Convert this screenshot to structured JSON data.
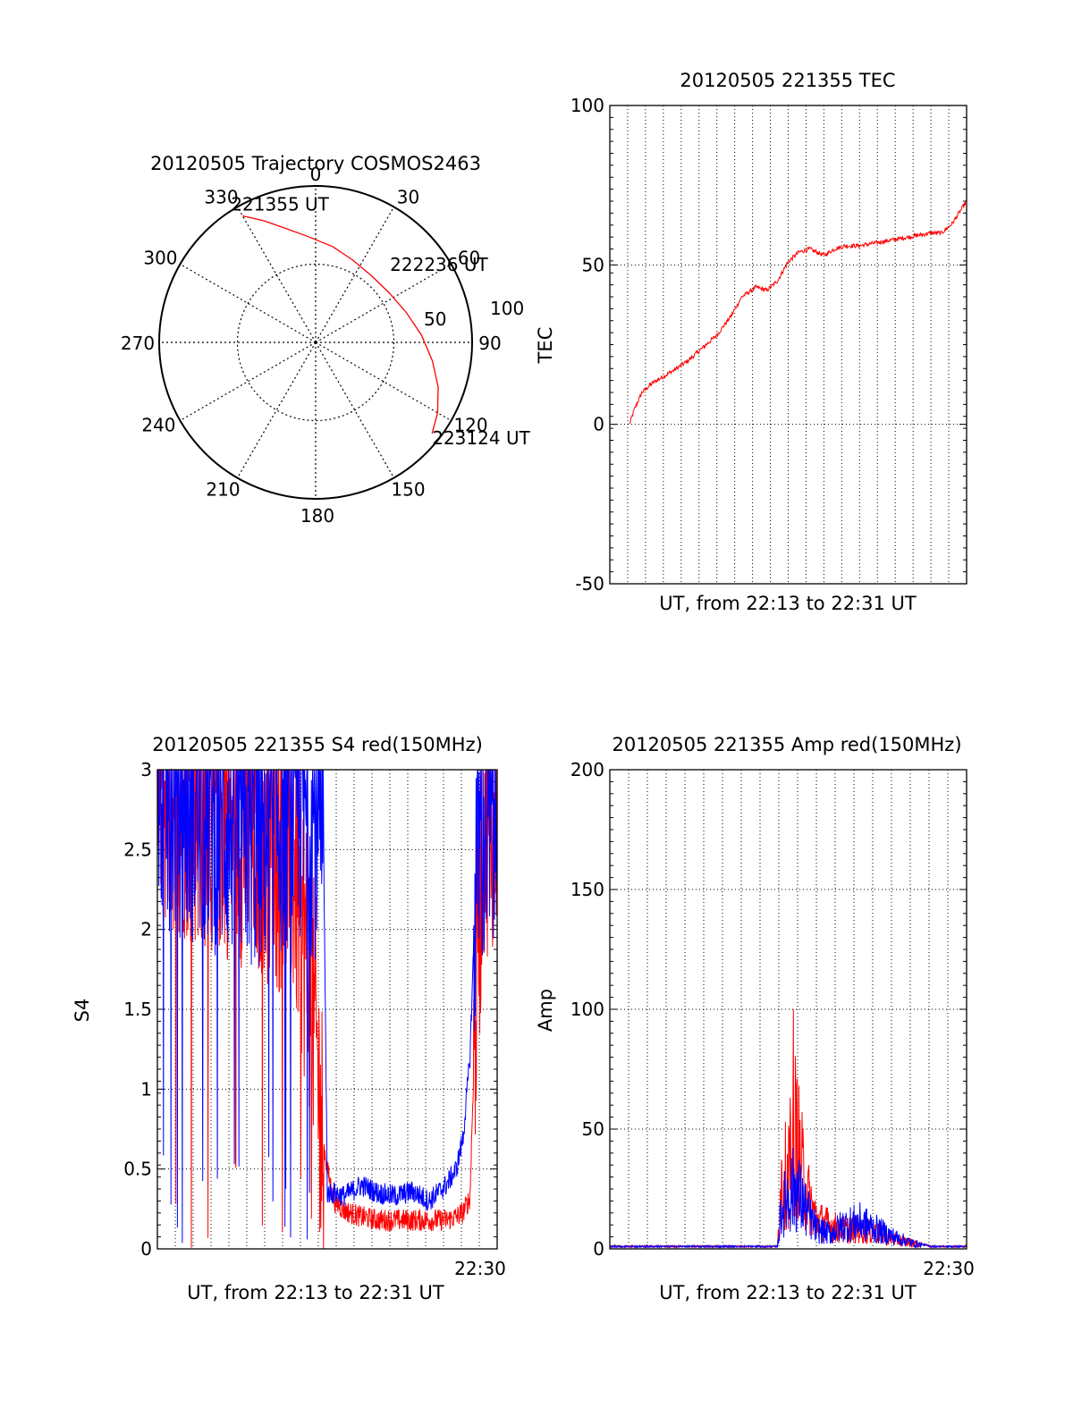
{
  "colors": {
    "red": "#ff0000",
    "blue": "#0000ff",
    "axis": "#000000",
    "grid": "#000000"
  },
  "chart_data": [
    {
      "id": "trajectory",
      "type": "polar",
      "title": "20120505 Trajectory COSMOS2463",
      "azimuth_labels": [
        "0",
        "30",
        "60",
        "90",
        "120",
        "150",
        "180",
        "210",
        "240",
        "270",
        "300",
        "330"
      ],
      "radial_labels": [
        {
          "text": "50",
          "elevation": 50
        },
        {
          "text": "100",
          "elevation": 0
        }
      ],
      "trajectory": {
        "color": "red",
        "points": [
          {
            "az": 330,
            "el": 6
          },
          {
            "az": 337,
            "el": 14
          },
          {
            "az": 345,
            "el": 22
          },
          {
            "az": 356,
            "el": 29
          },
          {
            "az": 10,
            "el": 34
          },
          {
            "az": 24,
            "el": 38
          },
          {
            "az": 40,
            "el": 40
          },
          {
            "az": 56,
            "el": 39
          },
          {
            "az": 72,
            "el": 35
          },
          {
            "az": 86,
            "el": 29
          },
          {
            "az": 99,
            "el": 22
          },
          {
            "az": 110,
            "el": 15
          },
          {
            "az": 120,
            "el": 9
          },
          {
            "az": 128,
            "el": 5
          }
        ]
      },
      "annotations": [
        {
          "text": "221355 UT",
          "az": 330,
          "el": 6
        },
        {
          "text": "222236 UT",
          "az": 57,
          "el": 39
        },
        {
          "text": "223124 UT",
          "az": 128,
          "el": 5
        }
      ]
    },
    {
      "id": "tec",
      "type": "line",
      "title": "20120505 221355 TEC",
      "xlabel": "UT, from 22:13 to 22:31 UT",
      "ylabel": "TEC",
      "ylim": [
        -50,
        100
      ],
      "xlim": [
        0,
        1
      ],
      "yticks": [
        "-50",
        "0",
        "50",
        "100"
      ],
      "x_gridlines": 20,
      "grid": true,
      "series": [
        {
          "color": "red",
          "x": [
            0.055,
            0.07,
            0.09,
            0.12,
            0.15,
            0.18,
            0.22,
            0.26,
            0.3,
            0.34,
            0.37,
            0.41,
            0.44,
            0.47,
            0.5,
            0.53,
            0.56,
            0.6,
            0.63,
            0.66,
            0.7,
            0.75,
            0.8,
            0.85,
            0.9,
            0.93,
            0.96,
            1.0
          ],
          "y": [
            0,
            5,
            10,
            13,
            15,
            17,
            20,
            24,
            28,
            34,
            40,
            43,
            42,
            45,
            51,
            54,
            55,
            53,
            55,
            56,
            56,
            57,
            58,
            59,
            60,
            60,
            63,
            70
          ]
        }
      ]
    },
    {
      "id": "s4",
      "type": "line",
      "title": "20120505 221355 S4 red(150MHz)",
      "xlabel": "UT, from 22:13 to 22:31 UT",
      "ylabel": "S4",
      "ylim": [
        0,
        3
      ],
      "xlim": [
        0,
        1
      ],
      "yticks": [
        "0",
        "0.5",
        "1",
        "1.5",
        "2",
        "2.5",
        "3"
      ],
      "xticks": [
        {
          "label": "22:30",
          "x": 0.95
        }
      ],
      "x_gridlines": 19,
      "grid": true,
      "noise": {
        "x_noisy_end": 0.49,
        "x_quiet_start": 0.49,
        "x_quiet_end": 0.93
      },
      "series": [
        {
          "color": "red",
          "x": [
            0,
            0.1,
            0.2,
            0.3,
            0.4,
            0.45,
            0.47,
            0.48,
            0.5,
            0.52,
            0.55,
            0.6,
            0.65,
            0.7,
            0.75,
            0.8,
            0.85,
            0.88,
            0.9,
            0.92,
            0.94,
            0.96,
            1.0
          ],
          "y": [
            2.9,
            2.8,
            2.7,
            2.6,
            2.4,
            1.7,
            1.2,
            0.8,
            0.5,
            0.3,
            0.24,
            0.2,
            0.18,
            0.18,
            0.18,
            0.18,
            0.18,
            0.2,
            0.23,
            0.32,
            1.8,
            2.7,
            2.8
          ]
        },
        {
          "color": "blue",
          "x": [
            0,
            0.1,
            0.2,
            0.3,
            0.4,
            0.47,
            0.49,
            0.5,
            0.52,
            0.55,
            0.6,
            0.65,
            0.7,
            0.75,
            0.8,
            0.85,
            0.88,
            0.9,
            0.92,
            0.94,
            0.96,
            1.0
          ],
          "y": [
            2.9,
            2.8,
            2.7,
            2.6,
            2.8,
            2.7,
            2.4,
            0.35,
            0.35,
            0.33,
            0.4,
            0.35,
            0.33,
            0.36,
            0.3,
            0.4,
            0.5,
            0.7,
            1.2,
            2.5,
            2.6,
            2.7
          ]
        }
      ]
    },
    {
      "id": "amp",
      "type": "line",
      "title": "20120505 221355 Amp red(150MHz)",
      "xlabel": "UT, from 22:13 to 22:31 UT",
      "ylabel": "Amp",
      "ylim": [
        0,
        200
      ],
      "xlim": [
        0,
        1
      ],
      "yticks": [
        "0",
        "50",
        "100",
        "150",
        "200"
      ],
      "xticks": [
        {
          "label": "22:30",
          "x": 0.95
        }
      ],
      "x_gridlines": 19,
      "grid": true,
      "series": [
        {
          "color": "red",
          "x": [
            0,
            0.1,
            0.2,
            0.3,
            0.4,
            0.47,
            0.48,
            0.5,
            0.52,
            0.55,
            0.58,
            0.62,
            0.65,
            0.7,
            0.75,
            0.8,
            0.85,
            0.9,
            1.0
          ],
          "y": [
            1,
            1,
            1,
            1,
            1,
            1,
            35,
            40,
            60,
            30,
            15,
            12,
            10,
            10,
            8,
            5,
            3,
            1,
            1
          ]
        },
        {
          "color": "blue",
          "x": [
            0,
            0.1,
            0.2,
            0.3,
            0.4,
            0.47,
            0.48,
            0.5,
            0.52,
            0.55,
            0.58,
            0.62,
            0.65,
            0.7,
            0.75,
            0.8,
            0.85,
            0.9,
            1.0
          ],
          "y": [
            1,
            1,
            1,
            1,
            1,
            1,
            20,
            28,
            32,
            20,
            10,
            8,
            12,
            14,
            10,
            6,
            3,
            1,
            1
          ]
        }
      ]
    }
  ]
}
